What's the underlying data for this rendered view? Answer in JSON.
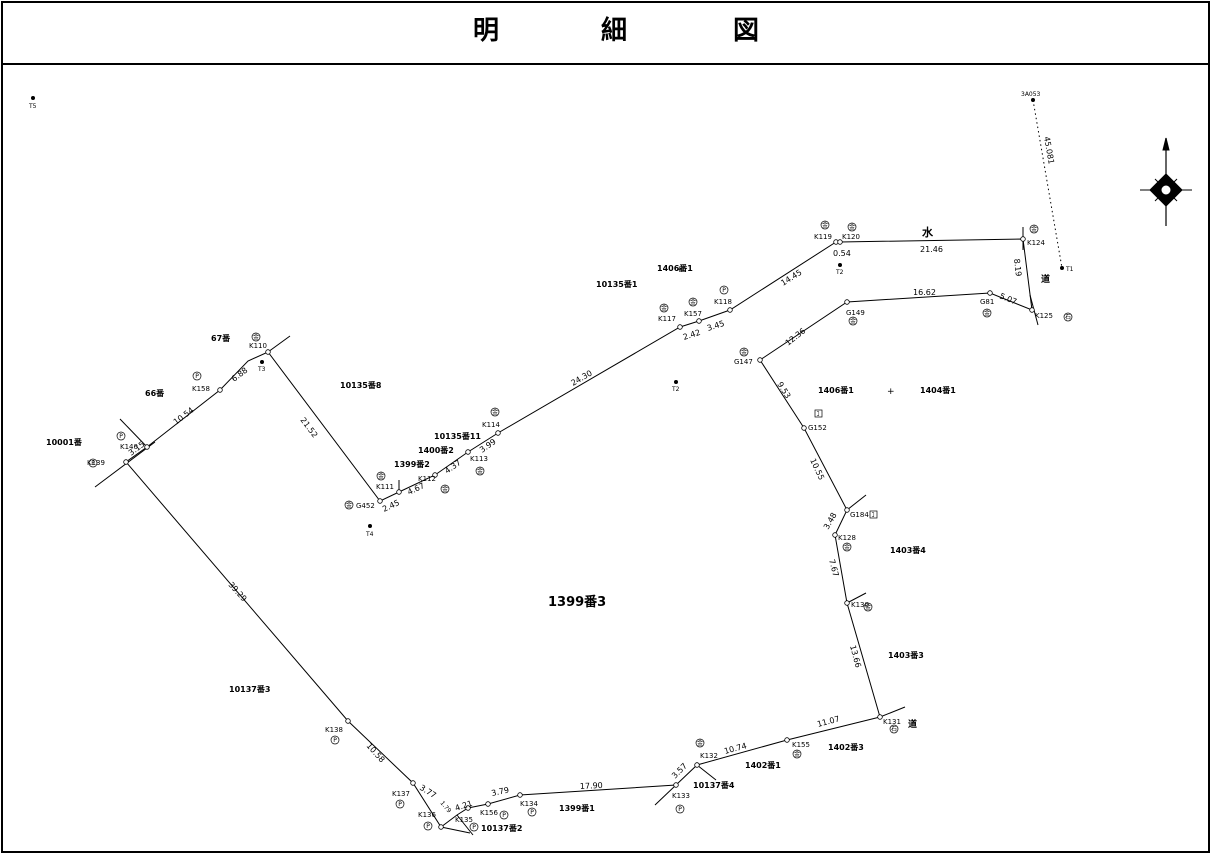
{
  "title": {
    "c1": "明",
    "c2": "細",
    "c3": "図"
  },
  "parcels": {
    "main": "1399番3",
    "p10001": "10001番",
    "p66": "66番",
    "p67": "67番",
    "p10135_8": "10135番8",
    "p10135_11": "10135番11",
    "p1400_2": "1400番2",
    "p1399_2": "1399番2",
    "p10135_1": "10135番1",
    "p1406_1a": "1406番1",
    "p1406_1b": "1406番1",
    "p1404_1": "1404番1",
    "p1403_4": "1403番4",
    "p1403_3": "1403番3",
    "p1402_3": "1402番3",
    "p1402_1": "1402番1",
    "p10137_4": "10137番4",
    "p1399_1": "1399番1",
    "p10137_2": "10137番2",
    "p10137_3": "10137番3"
  },
  "features": {
    "water": "水",
    "road1": "道",
    "road2": "道"
  },
  "points": {
    "K139": "K139",
    "K140": "K140",
    "K158": "K158",
    "K110": "K110",
    "G452": "G452",
    "K111": "K111",
    "K112": "K112",
    "K113": "K113",
    "K114": "K114",
    "K117": "K117",
    "K157": "K157",
    "K118": "K118",
    "K119": "K119",
    "K120": "K120",
    "K124": "K124",
    "K125": "K125",
    "G81": "G81",
    "G149": "G149",
    "G147": "G147",
    "G152": "G152",
    "G184": "G184",
    "K128": "K128",
    "K130": "K130",
    "K131": "K131",
    "K155": "K155",
    "K132": "K132",
    "K133": "K133",
    "K134": "K134",
    "K156": "K156",
    "K135": "K135",
    "K136": "K136",
    "K137": "K137",
    "K138": "K138"
  },
  "control_points": {
    "T1": "T1",
    "T2": "T2",
    "T3": "T3",
    "T4": "T4",
    "T5": "T5",
    "T6": "T5",
    "ref": "3A053"
  },
  "distances": {
    "d1": "3.15",
    "d2": "10.54",
    "d3": "6.88",
    "d4": "21.52",
    "d5": "2.45",
    "d6": "4.67",
    "d7": "4.37",
    "d8": "3.99",
    "d9": "24.30",
    "d10": "2.42",
    "d11": "3.45",
    "d12": "14.45",
    "d13": "0.54",
    "d14": "21.46",
    "d15": "8.19",
    "d16": "5.07",
    "d17": "16.62",
    "d18": "12.36",
    "d19": "9.53",
    "d20": "10.55",
    "d21": "3.48",
    "d22": "7.67",
    "d23": "13.66",
    "d24": "11.07",
    "d25": "10.74",
    "d26": "3.57",
    "d27": "17.90",
    "d28": "3.79",
    "d29": "4.21",
    "d30": "1.79",
    "d31": "3.77",
    "d32": "10.58",
    "d33": "39.29",
    "d34": "45.081"
  },
  "marks": {
    "konkuri": "ｺ",
    "plastic": "P",
    "metal": "金",
    "stone": "石"
  }
}
